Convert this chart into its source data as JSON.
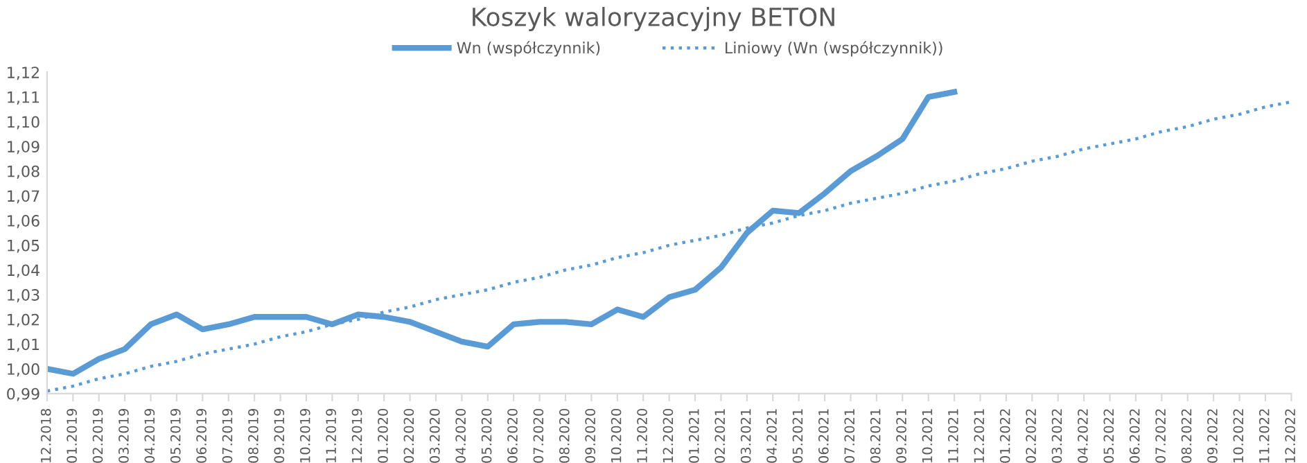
{
  "chart_data": {
    "type": "line",
    "title": "Koszyk waloryzacyjny BETON",
    "categories": [
      "12.2018",
      "01.2019",
      "02.2019",
      "03.2019",
      "04.2019",
      "05.2019",
      "06.2019",
      "07.2019",
      "08.2019",
      "09.2019",
      "10.2019",
      "11.2019",
      "12.2019",
      "01.2020",
      "02.2020",
      "03.2020",
      "04.2020",
      "05.2020",
      "06.2020",
      "07.2020",
      "08.2020",
      "09.2020",
      "10.2020",
      "11.2020",
      "12.2020",
      "01.2021",
      "02.2021",
      "03.2021",
      "04.2021",
      "05.2021",
      "06.2021",
      "07.2021",
      "08.2021",
      "09.2021",
      "10.2021",
      "11.2021",
      "12.2021",
      "01.2022",
      "02.2022",
      "03.2022",
      "04.2022",
      "05.2022",
      "06.2022",
      "07.2022",
      "08.2022",
      "09.2022",
      "10.2022",
      "11.2022",
      "12.2022"
    ],
    "series": [
      {
        "name": "Wn (współczynnik)",
        "color": "#5b9bd5",
        "line_style": "solid",
        "values": [
          1.0,
          0.998,
          1.004,
          1.008,
          1.018,
          1.022,
          1.016,
          1.018,
          1.021,
          1.021,
          1.021,
          1.018,
          1.022,
          1.021,
          1.019,
          1.015,
          1.011,
          1.009,
          1.018,
          1.019,
          1.019,
          1.018,
          1.024,
          1.021,
          1.029,
          1.032,
          1.041,
          1.055,
          1.064,
          1.063,
          1.071,
          1.08,
          1.086,
          1.093,
          1.11,
          1.112,
          null,
          null,
          null,
          null,
          null,
          null,
          null,
          null,
          null,
          null,
          null,
          null,
          null
        ]
      },
      {
        "name": "Liniowy (Wn (współczynnik))",
        "color": "#5b9bd5",
        "line_style": "dotted",
        "values": [
          0.991,
          0.993,
          0.996,
          0.998,
          1.001,
          1.003,
          1.006,
          1.008,
          1.01,
          1.013,
          1.015,
          1.018,
          1.02,
          1.023,
          1.025,
          1.028,
          1.03,
          1.032,
          1.035,
          1.037,
          1.04,
          1.042,
          1.045,
          1.047,
          1.05,
          1.052,
          1.054,
          1.057,
          1.059,
          1.062,
          1.064,
          1.067,
          1.069,
          1.071,
          1.074,
          1.076,
          1.079,
          1.081,
          1.084,
          1.086,
          1.089,
          1.091,
          1.093,
          1.096,
          1.098,
          1.101,
          1.103,
          1.106,
          1.108
        ]
      }
    ],
    "ylim": [
      0.99,
      1.12
    ],
    "yticks": [
      {
        "value": 0.99,
        "label": "0,99"
      },
      {
        "value": 1.0,
        "label": "1,00"
      },
      {
        "value": 1.01,
        "label": "1,01"
      },
      {
        "value": 1.02,
        "label": "1,02"
      },
      {
        "value": 1.03,
        "label": "1,03"
      },
      {
        "value": 1.04,
        "label": "1,04"
      },
      {
        "value": 1.05,
        "label": "1,05"
      },
      {
        "value": 1.06,
        "label": "1,06"
      },
      {
        "value": 1.07,
        "label": "1,07"
      },
      {
        "value": 1.08,
        "label": "1,08"
      },
      {
        "value": 1.09,
        "label": "1,09"
      },
      {
        "value": 1.1,
        "label": "1,10"
      },
      {
        "value": 1.11,
        "label": "1,11"
      },
      {
        "value": 1.12,
        "label": "1,12"
      }
    ],
    "grid": false,
    "legend": "top",
    "marker": "none"
  }
}
